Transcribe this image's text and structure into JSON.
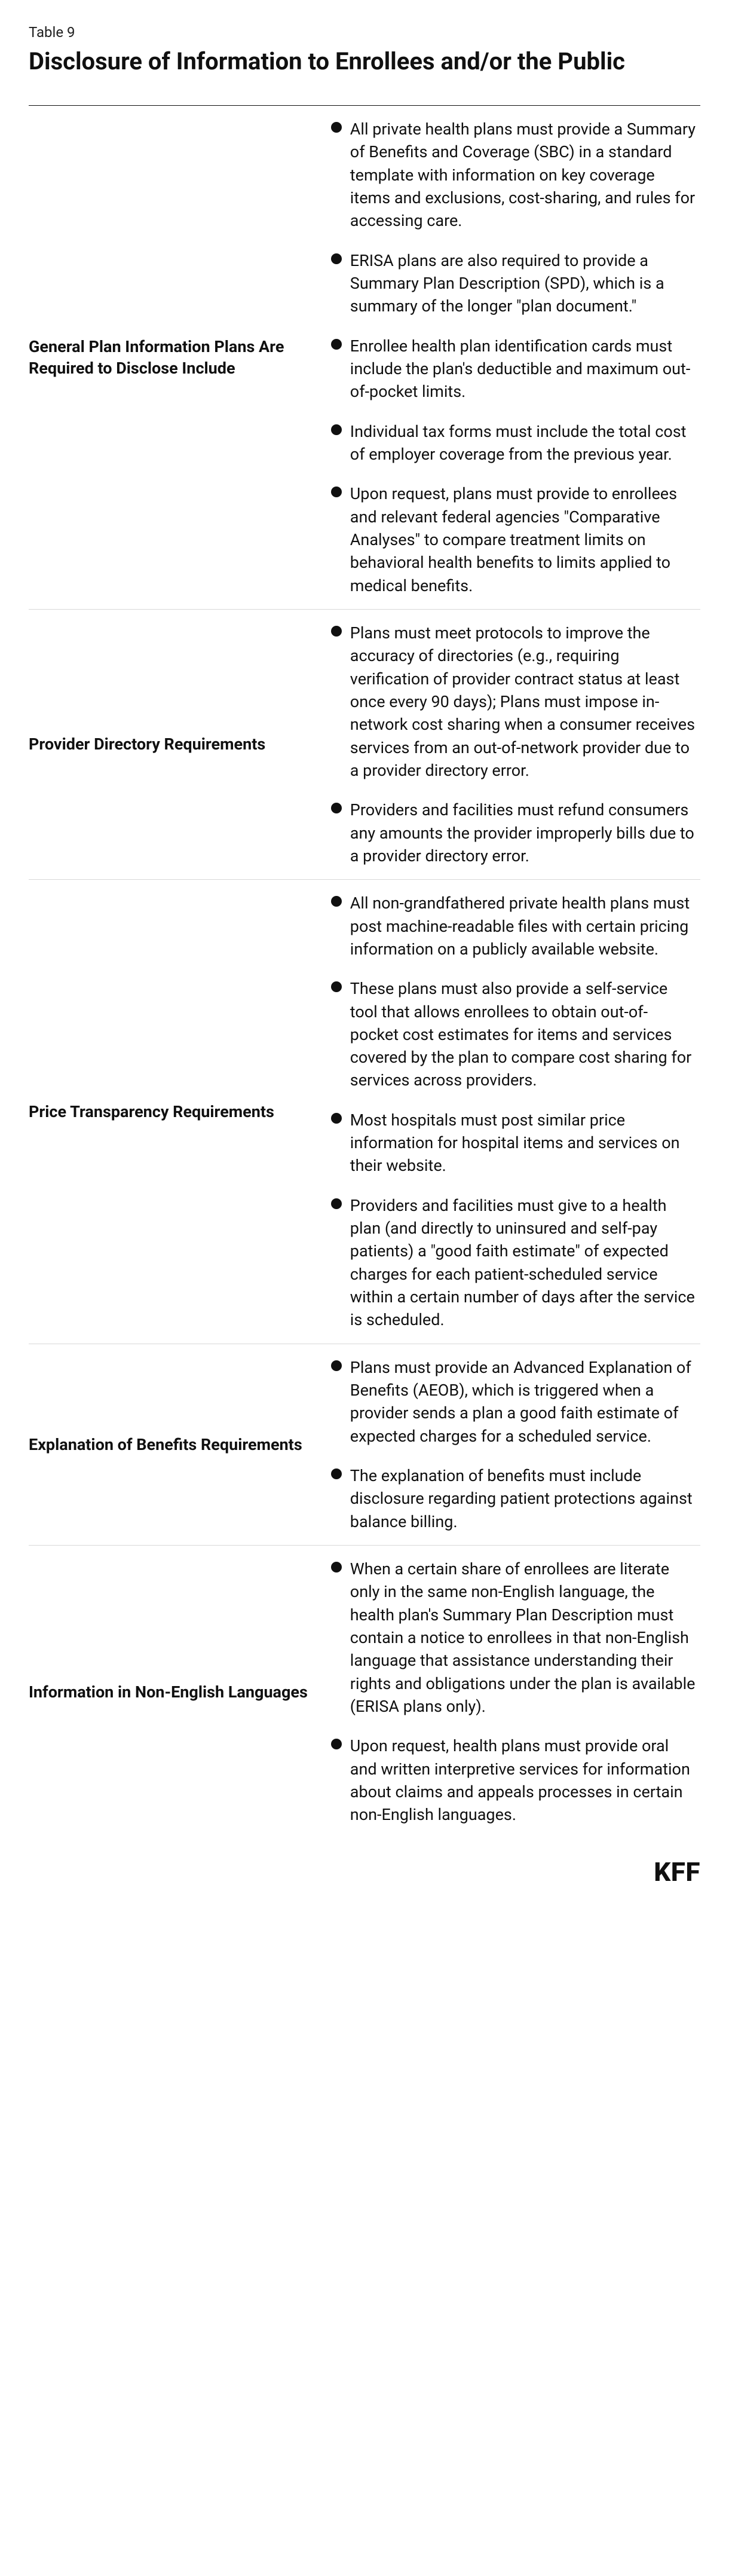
{
  "tableLabel": "Table 9",
  "title": "Disclosure of Information to Enrollees and/or the Public",
  "rows": [
    {
      "label": "General Plan Information Plans Are Required to Disclose Include",
      "bullets": [
        "All private health plans must provide a Summary of Benefits and Coverage (SBC) in a standard template with information on key coverage items and exclusions, cost-sharing, and rules for accessing care.",
        "ERISA plans are also required to provide a Summary Plan Description (SPD), which is a summary of the longer \"plan document.\"",
        "Enrollee health plan identification cards must include the plan's deductible and maximum out-of-pocket limits.",
        "Individual tax forms must include the total cost of employer coverage from the previous year.",
        "Upon request, plans must provide to enrollees and relevant federal agencies \"Comparative Analyses\" to compare treatment limits on behavioral health benefits to limits applied to medical benefits."
      ]
    },
    {
      "label": "Provider Directory Requirements",
      "bullets": [
        "Plans must meet protocols to improve the accuracy of directories (e.g., requiring verification of provider contract status at least once every 90 days); Plans must impose in-network cost sharing when a consumer receives services from an out-of-network provider due to a provider directory error.",
        "Providers and facilities must refund consumers any amounts the provider improperly bills due to a provider directory error."
      ]
    },
    {
      "label": "Price Transparency Requirements",
      "bullets": [
        "All non-grandfathered private health plans must post machine-readable files with certain pricing information on a publicly available website.",
        "These plans must also provide a self-service tool that allows enrollees to obtain out-of-pocket cost estimates for items and services covered by the plan to compare cost sharing for services across providers.",
        "Most hospitals must post similar price information for hospital items and services on their website.",
        "Providers and facilities must give to a health plan (and directly to uninsured and self-pay patients) a \"good faith estimate\" of expected charges for each patient-scheduled service within a certain number of days after the service is scheduled."
      ]
    },
    {
      "label": "Explanation of Benefits Requirements",
      "bullets": [
        "Plans must provide an Advanced Explanation of Benefits (AEOB), which is triggered when a provider sends a plan a good faith estimate of expected charges for a scheduled service.",
        "The explanation of benefits must include disclosure regarding patient protections against balance billing."
      ]
    },
    {
      "label": "Information in Non-English Languages",
      "bullets": [
        "When a certain share of enrollees are literate only in the same non-English language, the health plan's Summary Plan Description must contain a notice to enrollees in that non-English language that assistance understanding their rights and obligations under the plan is available (ERISA plans only).",
        "Upon request, health plans must provide oral and written interpretive services for information about claims and appeals processes in certain non-English languages."
      ]
    }
  ],
  "footer": "KFF",
  "colors": {
    "text": "#101010",
    "rowBorder": "#d8d8d8",
    "background": "#ffffff"
  }
}
